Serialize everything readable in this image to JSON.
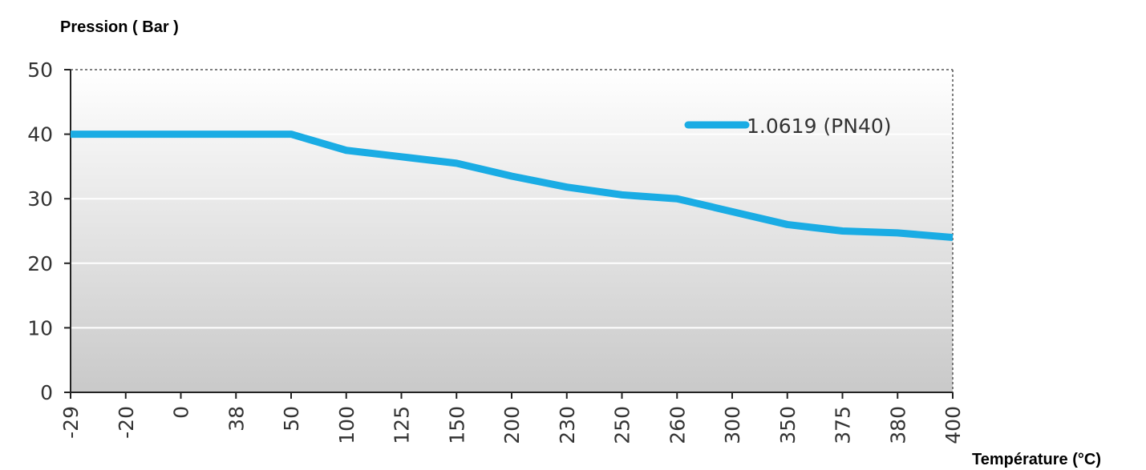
{
  "chart_data": {
    "type": "line",
    "ylabel": "Pression ( Bar )",
    "xlabel": "Température (°C)",
    "ylim": [
      0,
      50
    ],
    "yticks": [
      "0",
      "10",
      "20",
      "30",
      "40",
      "50"
    ],
    "categories": [
      "-29",
      "-20",
      "0",
      "38",
      "50",
      "100",
      "125",
      "150",
      "200",
      "230",
      "250",
      "260",
      "300",
      "350",
      "375",
      "380",
      "400"
    ],
    "grid": true,
    "legend_position": "top-right",
    "series": [
      {
        "name": "1.0619 (PN40)",
        "color": "#1aace4",
        "values": [
          40,
          40,
          40,
          40,
          40,
          37.5,
          36.5,
          35.5,
          33.5,
          31.8,
          30.6,
          30,
          28,
          26,
          25,
          24.7,
          24
        ]
      }
    ]
  }
}
